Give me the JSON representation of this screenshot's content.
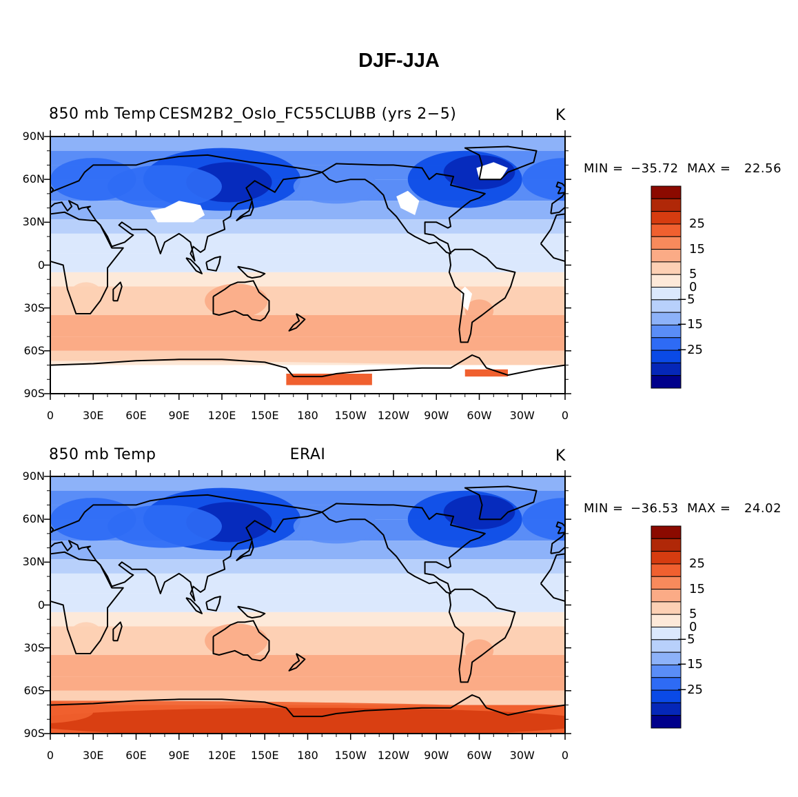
{
  "title": "DJF-JJA",
  "colorbar": {
    "colors": [
      "#00008b",
      "#0527b8",
      "#0a4ae6",
      "#2e6bf5",
      "#5a8df7",
      "#8db2f9",
      "#b8d0fb",
      "#dbe8fd",
      "#fde9d9",
      "#fdd0b4",
      "#fbab86",
      "#f88a5c",
      "#f0602f",
      "#d63c10",
      "#b02808",
      "#8b0a00"
    ],
    "labels": [
      "25",
      "15",
      "5",
      "0",
      "−5",
      "−15",
      "−25"
    ],
    "label_levels": [
      25,
      15,
      5,
      0,
      -5,
      -15,
      -25
    ]
  },
  "lat_labels": [
    "90N",
    "60N",
    "30N",
    "0",
    "30S",
    "60S",
    "90S"
  ],
  "lon_labels": [
    "0",
    "30E",
    "60E",
    "90E",
    "120E",
    "150E",
    "180",
    "150W",
    "120W",
    "90W",
    "60W",
    "30W",
    "0"
  ],
  "panels": [
    {
      "left_label": "850 mb Temp",
      "center_label": "CESM2B2_Oslo_FC55CLUBB (yrs 2−5)",
      "right_label": "K",
      "min_label": "MIN =",
      "min_value": "−35.72",
      "max_label": "MAX =",
      "max_value": "22.56",
      "missing_data": true
    },
    {
      "left_label": "850 mb Temp",
      "center_label": "ERAI",
      "right_label": "K",
      "min_label": "MIN =",
      "min_value": "−36.53",
      "max_label": "MAX =",
      "max_value": "24.02",
      "missing_data": false
    }
  ],
  "chart_data": [
    {
      "type": "heatmap",
      "title": "DJF-JJA",
      "field": "850 mb Temp",
      "dataset": "CESM2B2_Oslo_FC55CLUBB (yrs 2−5)",
      "units": "K",
      "min": -35.72,
      "max": 22.56,
      "xlim": [
        0,
        360
      ],
      "ylim": [
        -90,
        90
      ],
      "x_ticks": [
        "0",
        "30E",
        "60E",
        "90E",
        "120E",
        "150E",
        "180",
        "150W",
        "120W",
        "90W",
        "60W",
        "30W",
        "0"
      ],
      "y_ticks": [
        "90N",
        "60N",
        "30N",
        "0",
        "30S",
        "60S",
        "90S"
      ],
      "contour_levels": [
        -35,
        -30,
        -25,
        -20,
        -15,
        -10,
        -5,
        0,
        5,
        10,
        15,
        20,
        25,
        30,
        35
      ]
    },
    {
      "type": "heatmap",
      "title": "DJF-JJA",
      "field": "850 mb Temp",
      "dataset": "ERAI",
      "units": "K",
      "min": -36.53,
      "max": 24.02,
      "xlim": [
        0,
        360
      ],
      "ylim": [
        -90,
        90
      ],
      "x_ticks": [
        "0",
        "30E",
        "60E",
        "90E",
        "120E",
        "150E",
        "180",
        "150W",
        "120W",
        "90W",
        "60W",
        "30W",
        "0"
      ],
      "y_ticks": [
        "90N",
        "60N",
        "30N",
        "0",
        "30S",
        "60S",
        "90S"
      ],
      "contour_levels": [
        -35,
        -30,
        -25,
        -20,
        -15,
        -10,
        -5,
        0,
        5,
        10,
        15,
        20,
        25,
        30,
        35
      ]
    }
  ]
}
